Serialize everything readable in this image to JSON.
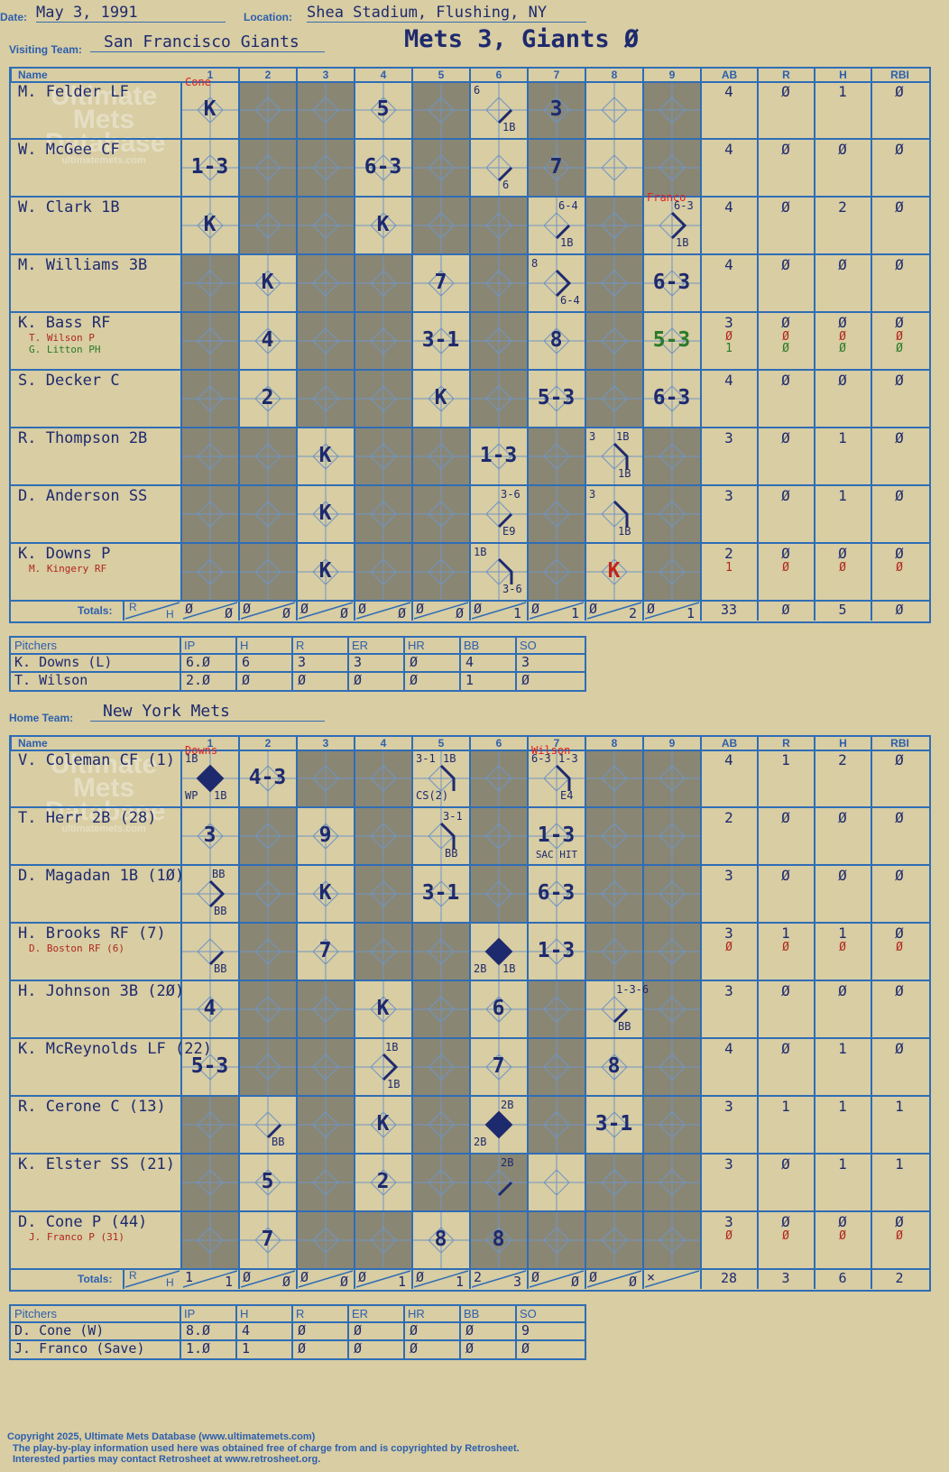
{
  "header": {
    "date_label": "Date:",
    "date": "May 3, 1991",
    "location_label": "Location:",
    "location": "Shea Stadium, Flushing, NY",
    "visiting_label": "Visiting Team:",
    "visiting_team": "San Francisco Giants",
    "home_label": "Home Team:",
    "home_team": "New York Mets",
    "result": "Mets 3, Giants Ø"
  },
  "columns": {
    "name": "Name",
    "innings": [
      "1",
      "2",
      "3",
      "4",
      "5",
      "6",
      "7",
      "8",
      "9"
    ],
    "stats": [
      "AB",
      "R",
      "H",
      "RBI"
    ],
    "totals_label": "Totals:",
    "r_label": "R",
    "h_label": "H"
  },
  "watermark": {
    "line1": "Ultimate",
    "line2": "Mets",
    "line3": "Database",
    "line4": "ultimatemets.com"
  },
  "visitors": {
    "batters": [
      {
        "name": "M. Felder LF",
        "stats": [
          "4",
          "Ø",
          "1",
          "Ø"
        ]
      },
      {
        "name": "W. McGee CF",
        "stats": [
          "4",
          "Ø",
          "Ø",
          "Ø"
        ]
      },
      {
        "name": "W. Clark 1B",
        "stats": [
          "4",
          "Ø",
          "2",
          "Ø"
        ]
      },
      {
        "name": "M. Williams 3B",
        "stats": [
          "4",
          "Ø",
          "Ø",
          "Ø"
        ]
      },
      {
        "name": "K. Bass RF",
        "stats": [
          "3",
          "Ø",
          "Ø",
          "Ø"
        ],
        "subs": [
          {
            "name": "T. Wilson P",
            "stats": [
              "Ø",
              "Ø",
              "Ø",
              "Ø"
            ],
            "color": "#b0261e"
          },
          {
            "name": "G. Litton PH",
            "stats": [
              "1",
              "Ø",
              "Ø",
              "Ø"
            ],
            "color": "#2a7a28"
          }
        ]
      },
      {
        "name": "S. Decker C",
        "stats": [
          "4",
          "Ø",
          "Ø",
          "Ø"
        ]
      },
      {
        "name": "R. Thompson 2B",
        "stats": [
          "3",
          "Ø",
          "1",
          "Ø"
        ]
      },
      {
        "name": "D. Anderson SS",
        "stats": [
          "3",
          "Ø",
          "1",
          "Ø"
        ]
      },
      {
        "name": "K. Downs P",
        "stats": [
          "2",
          "Ø",
          "Ø",
          "Ø"
        ],
        "subs": [
          {
            "name": "M. Kingery RF",
            "stats": [
              "1",
              "Ø",
              "Ø",
              "Ø"
            ],
            "color": "#b0261e"
          }
        ]
      }
    ],
    "plays": [
      {
        "row": 0,
        "inn": 0,
        "text": "K"
      },
      {
        "row": 0,
        "inn": 3,
        "text": "5"
      },
      {
        "row": 0,
        "inn": 5,
        "text": ""
      },
      {
        "row": 0,
        "inn": 6,
        "text": "3"
      },
      {
        "row": 1,
        "inn": 0,
        "text": "1-3"
      },
      {
        "row": 1,
        "inn": 3,
        "text": "6-3"
      },
      {
        "row": 1,
        "inn": 6,
        "text": "7"
      },
      {
        "row": 2,
        "inn": 0,
        "text": "K"
      },
      {
        "row": 2,
        "inn": 3,
        "text": "K"
      },
      {
        "row": 3,
        "inn": 1,
        "text": "K"
      },
      {
        "row": 3,
        "inn": 4,
        "text": "7"
      },
      {
        "row": 3,
        "inn": 8,
        "text": "6-3"
      },
      {
        "row": 4,
        "inn": 1,
        "text": "4"
      },
      {
        "row": 4,
        "inn": 4,
        "text": "3-1"
      },
      {
        "row": 4,
        "inn": 6,
        "text": "8"
      },
      {
        "row": 4,
        "inn": 8,
        "text": "5-3",
        "color": "#2a7a28"
      },
      {
        "row": 5,
        "inn": 1,
        "text": "2"
      },
      {
        "row": 5,
        "inn": 4,
        "text": "K"
      },
      {
        "row": 5,
        "inn": 6,
        "text": "5-3"
      },
      {
        "row": 5,
        "inn": 8,
        "text": "6-3"
      },
      {
        "row": 6,
        "inn": 2,
        "text": "K"
      },
      {
        "row": 6,
        "inn": 5,
        "text": "1-3"
      },
      {
        "row": 7,
        "inn": 2,
        "text": "K"
      },
      {
        "row": 8,
        "inn": 2,
        "text": "K"
      },
      {
        "row": 8,
        "inn": 7,
        "text": "K",
        "color": "#c0261e"
      }
    ],
    "notes": [
      {
        "row": 0,
        "inn": 5,
        "text": "6",
        "pos": "tl"
      },
      {
        "row": 0,
        "inn": 5,
        "text": "1B",
        "pos": "br"
      },
      {
        "row": 1,
        "inn": 5,
        "text": "6",
        "pos": "br"
      },
      {
        "row": 2,
        "inn": 6,
        "text": "6-4",
        "pos": "tr"
      },
      {
        "row": 2,
        "inn": 6,
        "text": "1B",
        "pos": "br"
      },
      {
        "row": 2,
        "inn": 8,
        "text": "6-3",
        "pos": "tr"
      },
      {
        "row": 2,
        "inn": 8,
        "text": "1B",
        "pos": "br"
      },
      {
        "row": 3,
        "inn": 6,
        "text": "8",
        "pos": "tl"
      },
      {
        "row": 3,
        "inn": 6,
        "text": "6-4",
        "pos": "br"
      },
      {
        "row": 6,
        "inn": 7,
        "text": "3",
        "pos": "tl"
      },
      {
        "row": 6,
        "inn": 7,
        "text": "1B",
        "pos": "tr"
      },
      {
        "row": 6,
        "inn": 7,
        "text": "1B",
        "pos": "br"
      },
      {
        "row": 7,
        "inn": 5,
        "text": "3-6",
        "pos": "tr"
      },
      {
        "row": 7,
        "inn": 5,
        "text": "E9",
        "pos": "br"
      },
      {
        "row": 7,
        "inn": 7,
        "text": "3",
        "pos": "tl"
      },
      {
        "row": 7,
        "inn": 7,
        "text": "1B",
        "pos": "br"
      },
      {
        "row": 8,
        "inn": 5,
        "text": "1B",
        "pos": "tl"
      },
      {
        "row": 8,
        "inn": 5,
        "text": "3-6",
        "pos": "br"
      }
    ],
    "pitcher_notes": [
      {
        "row": 0,
        "inn": 0,
        "text": "Cone"
      },
      {
        "row": 2,
        "inn": 8,
        "text": "Franco"
      }
    ],
    "totals_rh": [
      [
        "Ø",
        "Ø"
      ],
      [
        "Ø",
        "Ø"
      ],
      [
        "Ø",
        "Ø"
      ],
      [
        "Ø",
        "Ø"
      ],
      [
        "Ø",
        "Ø"
      ],
      [
        "Ø",
        "1"
      ],
      [
        "Ø",
        "1"
      ],
      [
        "Ø",
        "2"
      ],
      [
        "Ø",
        "1"
      ]
    ],
    "totals_stats": [
      "33",
      "Ø",
      "5",
      "Ø"
    ],
    "pitchers": [
      {
        "name": "K. Downs (L)",
        "stats": [
          "6.Ø",
          "6",
          "3",
          "3",
          "Ø",
          "4",
          "3"
        ]
      },
      {
        "name": "T. Wilson",
        "stats": [
          "2.Ø",
          "Ø",
          "Ø",
          "Ø",
          "Ø",
          "1",
          "Ø"
        ]
      }
    ]
  },
  "home": {
    "batters": [
      {
        "name": "V. Coleman CF (1)",
        "stats": [
          "4",
          "1",
          "2",
          "Ø"
        ]
      },
      {
        "name": "T. Herr 2B (28)",
        "stats": [
          "2",
          "Ø",
          "Ø",
          "Ø"
        ]
      },
      {
        "name": "D. Magadan 1B (1Ø)",
        "stats": [
          "3",
          "Ø",
          "Ø",
          "Ø"
        ]
      },
      {
        "name": "H. Brooks RF (7)",
        "stats": [
          "3",
          "1",
          "1",
          "Ø"
        ],
        "subs": [
          {
            "name": "D. Boston RF (6)",
            "stats": [
              "Ø",
              "Ø",
              "Ø",
              "Ø"
            ],
            "color": "#b0261e"
          }
        ]
      },
      {
        "name": "H. Johnson 3B (2Ø)",
        "stats": [
          "3",
          "Ø",
          "Ø",
          "Ø"
        ]
      },
      {
        "name": "K. McReynolds LF (22)",
        "stats": [
          "4",
          "Ø",
          "1",
          "Ø"
        ]
      },
      {
        "name": "R. Cerone C (13)",
        "stats": [
          "3",
          "1",
          "1",
          "1"
        ]
      },
      {
        "name": "K. Elster SS (21)",
        "stats": [
          "3",
          "Ø",
          "1",
          "1"
        ]
      },
      {
        "name": "D. Cone P (44)",
        "stats": [
          "3",
          "Ø",
          "Ø",
          "Ø"
        ],
        "subs": [
          {
            "name": "J. Franco P (31)",
            "stats": [
              "Ø",
              "Ø",
              "Ø",
              "Ø"
            ],
            "color": "#b0261e"
          }
        ]
      }
    ],
    "plays": [
      {
        "row": 0,
        "inn": 1,
        "text": "4-3"
      },
      {
        "row": 1,
        "inn": 0,
        "text": "3"
      },
      {
        "row": 1,
        "inn": 2,
        "text": "9"
      },
      {
        "row": 1,
        "inn": 6,
        "text": "1-3"
      },
      {
        "row": 2,
        "inn": 2,
        "text": "K"
      },
      {
        "row": 2,
        "inn": 4,
        "text": "3-1"
      },
      {
        "row": 2,
        "inn": 6,
        "text": "6-3"
      },
      {
        "row": 3,
        "inn": 2,
        "text": "7"
      },
      {
        "row": 3,
        "inn": 6,
        "text": "1-3"
      },
      {
        "row": 4,
        "inn": 0,
        "text": "4"
      },
      {
        "row": 4,
        "inn": 3,
        "text": "K"
      },
      {
        "row": 4,
        "inn": 5,
        "text": "6"
      },
      {
        "row": 5,
        "inn": 0,
        "text": "5-3"
      },
      {
        "row": 5,
        "inn": 5,
        "text": "7"
      },
      {
        "row": 5,
        "inn": 7,
        "text": "8"
      },
      {
        "row": 6,
        "inn": 3,
        "text": "K"
      },
      {
        "row": 6,
        "inn": 7,
        "text": "3-1"
      },
      {
        "row": 7,
        "inn": 1,
        "text": "5"
      },
      {
        "row": 7,
        "inn": 3,
        "text": "2"
      },
      {
        "row": 8,
        "inn": 1,
        "text": "7"
      },
      {
        "row": 8,
        "inn": 4,
        "text": "8"
      },
      {
        "row": 8,
        "inn": 5,
        "text": "8"
      }
    ],
    "notes": [
      {
        "row": 0,
        "inn": 0,
        "text": "1B",
        "pos": "tl"
      },
      {
        "row": 0,
        "inn": 0,
        "text": "WP",
        "pos": "bl"
      },
      {
        "row": 0,
        "inn": 0,
        "text": "1B",
        "pos": "br"
      },
      {
        "row": 0,
        "inn": 4,
        "text": "3-1",
        "pos": "tl"
      },
      {
        "row": 0,
        "inn": 4,
        "text": "1B",
        "pos": "tr"
      },
      {
        "row": 0,
        "inn": 4,
        "text": "CS(2)",
        "pos": "bl"
      },
      {
        "row": 0,
        "inn": 6,
        "text": "6-3",
        "pos": "tl"
      },
      {
        "row": 0,
        "inn": 6,
        "text": "1-3",
        "pos": "tr"
      },
      {
        "row": 0,
        "inn": 6,
        "text": "E4",
        "pos": "br"
      },
      {
        "row": 1,
        "inn": 4,
        "text": "3-1",
        "pos": "tr"
      },
      {
        "row": 1,
        "inn": 4,
        "text": "BB",
        "pos": "br"
      },
      {
        "row": 1,
        "inn": 6,
        "text": "SAC HIT",
        "pos": "bc"
      },
      {
        "row": 2,
        "inn": 0,
        "text": "BB",
        "pos": "tr"
      },
      {
        "row": 2,
        "inn": 0,
        "text": "BB",
        "pos": "br"
      },
      {
        "row": 3,
        "inn": 0,
        "text": "BB",
        "pos": "br"
      },
      {
        "row": 3,
        "inn": 5,
        "text": "2B",
        "pos": "bl"
      },
      {
        "row": 3,
        "inn": 5,
        "text": "1B",
        "pos": "br"
      },
      {
        "row": 4,
        "inn": 7,
        "text": "1-3-6",
        "pos": "tr"
      },
      {
        "row": 4,
        "inn": 7,
        "text": "BB",
        "pos": "br"
      },
      {
        "row": 5,
        "inn": 3,
        "text": "1B",
        "pos": "tr"
      },
      {
        "row": 5,
        "inn": 3,
        "text": "1B",
        "pos": "br"
      },
      {
        "row": 6,
        "inn": 1,
        "text": "BB",
        "pos": "br"
      },
      {
        "row": 6,
        "inn": 5,
        "text": "2B",
        "pos": "tr"
      },
      {
        "row": 6,
        "inn": 5,
        "text": "2B",
        "pos": "bl"
      },
      {
        "row": 7,
        "inn": 5,
        "text": "2B",
        "pos": "tr"
      }
    ],
    "pitcher_notes": [
      {
        "row": 0,
        "inn": 0,
        "text": "Downs"
      },
      {
        "row": 0,
        "inn": 6,
        "text": "Wilson"
      }
    ],
    "totals_rh": [
      [
        "1",
        "1"
      ],
      [
        "Ø",
        "Ø"
      ],
      [
        "Ø",
        "Ø"
      ],
      [
        "Ø",
        "1"
      ],
      [
        "Ø",
        "1"
      ],
      [
        "2",
        "3"
      ],
      [
        "Ø",
        "Ø"
      ],
      [
        "Ø",
        "Ø"
      ],
      [
        "×",
        ""
      ]
    ],
    "totals_stats": [
      "28",
      "3",
      "6",
      "2"
    ],
    "pitchers": [
      {
        "name": "D. Cone (W)",
        "stats": [
          "8.Ø",
          "4",
          "Ø",
          "Ø",
          "Ø",
          "Ø",
          "9"
        ]
      },
      {
        "name": "J. Franco (Save)",
        "stats": [
          "1.Ø",
          "1",
          "Ø",
          "Ø",
          "Ø",
          "Ø",
          "Ø"
        ]
      }
    ]
  },
  "pitcher_cols": [
    "Pitchers",
    "IP",
    "H",
    "R",
    "ER",
    "HR",
    "BB",
    "SO"
  ],
  "footer": {
    "line1": "Copyright 2025, Ultimate Mets Database (www.ultimatemets.com)",
    "line2": "The play-by-play information used here was obtained free of charge from and is copyrighted by Retrosheet.",
    "line3": "Interested parties may contact Retrosheet at www.retrosheet.org."
  }
}
